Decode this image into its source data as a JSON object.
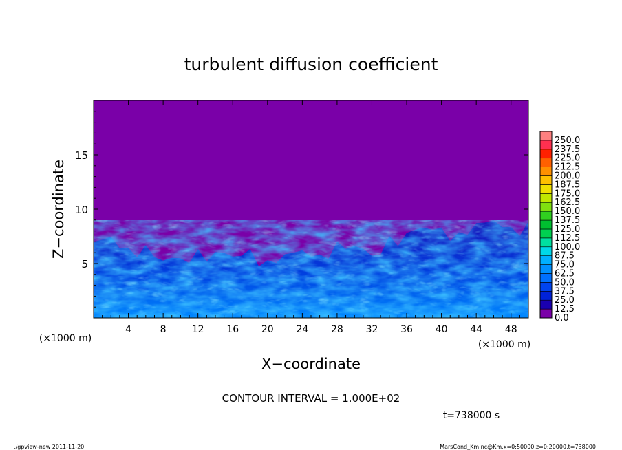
{
  "chart_data": {
    "type": "heatmap",
    "title": "turbulent diffusion coefficient",
    "xlabel": "X−coordinate",
    "ylabel": "Z−coordinate",
    "x_unit_left": "(×1000 m)",
    "x_unit_right": "(×1000 m)",
    "xlim": [
      0,
      50
    ],
    "ylim": [
      0,
      20
    ],
    "x_ticks": [
      4,
      8,
      12,
      16,
      20,
      24,
      28,
      32,
      36,
      40,
      44,
      48
    ],
    "y_ticks": [
      5,
      10,
      15
    ],
    "colorbar": {
      "levels": [
        "0.0",
        "12.5",
        "25.0",
        "37.5",
        "50.0",
        "62.5",
        "75.0",
        "87.5",
        "100.0",
        "112.5",
        "125.0",
        "137.5",
        "150.0",
        "162.5",
        "175.0",
        "187.5",
        "200.0",
        "212.5",
        "225.0",
        "237.5",
        "250.0"
      ],
      "colors": [
        "#7a00a8",
        "#1a00b0",
        "#0022d8",
        "#0044f0",
        "#0070ff",
        "#0090ff",
        "#00b0ff",
        "#00d8e8",
        "#00e0a0",
        "#00d050",
        "#00c030",
        "#30d020",
        "#80e010",
        "#c0e800",
        "#f0e000",
        "#ffc000",
        "#ff9000",
        "#ff6000",
        "#ff2000",
        "#ff3050",
        "#ff8080"
      ]
    },
    "turbulent_layer_top": [
      [
        0,
        7.0
      ],
      [
        2,
        7.2
      ],
      [
        4,
        6.8
      ],
      [
        6,
        6.5
      ],
      [
        8,
        5.2
      ],
      [
        10,
        5.8
      ],
      [
        12,
        6.0
      ],
      [
        14,
        6.2
      ],
      [
        16,
        5.8
      ],
      [
        18,
        6.0
      ],
      [
        20,
        5.6
      ],
      [
        22,
        5.8
      ],
      [
        24,
        6.0
      ],
      [
        26,
        6.2
      ],
      [
        28,
        6.8
      ],
      [
        30,
        6.6
      ],
      [
        32,
        6.0
      ],
      [
        34,
        7.2
      ],
      [
        36,
        8.0
      ],
      [
        38,
        8.4
      ],
      [
        40,
        8.0
      ],
      [
        42,
        8.2
      ],
      [
        44,
        8.6
      ],
      [
        46,
        8.8
      ],
      [
        48,
        8.7
      ],
      [
        50,
        8.6
      ]
    ],
    "contour_interval": "CONTOUR INTERVAL = 1.000E+02",
    "time_label": "t=738000 s"
  },
  "footer": {
    "left": "./gpview-new   2011-11-20",
    "right": "MarsCond_Km.nc@Km,x=0:50000,z=0:20000,t=738000"
  }
}
